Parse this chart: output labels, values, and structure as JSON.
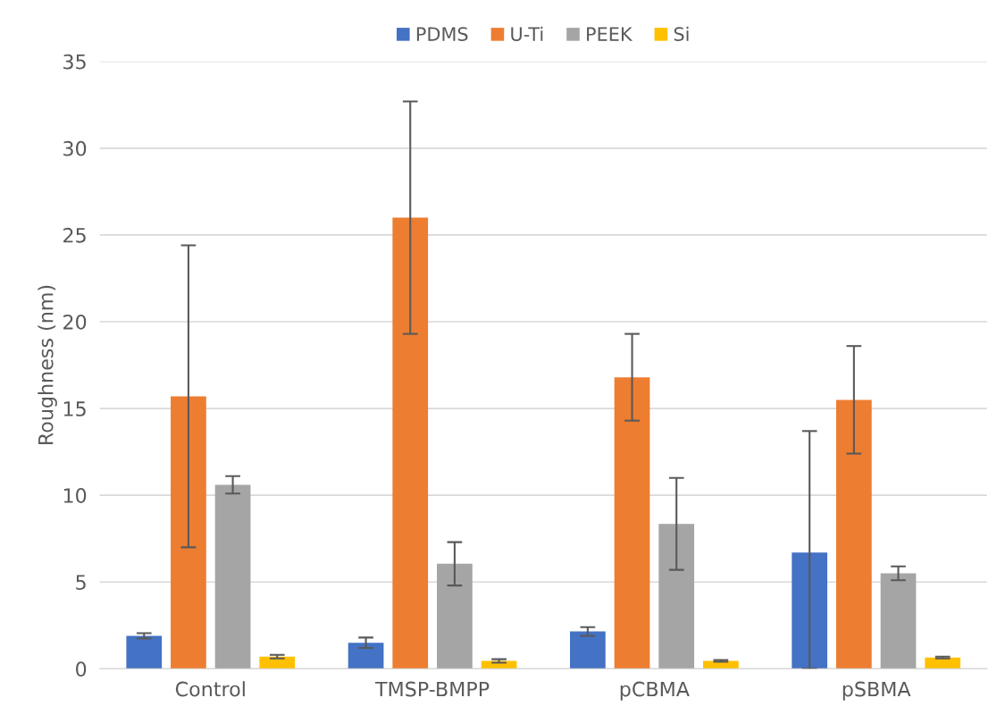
{
  "chart_data": {
    "type": "bar",
    "ylabel": "Roughness (nm)",
    "categories": [
      "Control",
      "TMSP-BMPP",
      "pCBMA",
      "pSBMA"
    ],
    "series": [
      {
        "name": "PDMS",
        "color": "#4472c4",
        "values": [
          1.9,
          1.5,
          2.15,
          6.7
        ],
        "errors": [
          [
            1.75,
            2.05
          ],
          [
            1.2,
            1.8
          ],
          [
            1.9,
            2.4
          ],
          [
            0,
            13.7
          ]
        ]
      },
      {
        "name": "U-Ti",
        "color": "#ed7d31",
        "values": [
          15.7,
          26.0,
          16.8,
          15.5
        ],
        "errors": [
          [
            7.0,
            24.4
          ],
          [
            19.3,
            32.7
          ],
          [
            14.3,
            19.3
          ],
          [
            12.4,
            18.6
          ]
        ]
      },
      {
        "name": "PEEK",
        "color": "#a5a5a5",
        "values": [
          10.6,
          6.05,
          8.35,
          5.5
        ],
        "errors": [
          [
            10.1,
            11.1
          ],
          [
            4.8,
            7.3
          ],
          [
            5.7,
            11.0
          ],
          [
            5.1,
            5.9
          ]
        ]
      },
      {
        "name": "Si",
        "color": "#ffc000",
        "values": [
          0.7,
          0.45,
          0.45,
          0.65
        ],
        "errors": [
          [
            0.6,
            0.8
          ],
          [
            0.35,
            0.55
          ],
          [
            0.4,
            0.5
          ],
          [
            0.6,
            0.7
          ]
        ]
      }
    ],
    "ylim": [
      0,
      35
    ],
    "yticks": [
      0,
      5,
      10,
      15,
      20,
      25,
      30,
      35
    ],
    "grid": "y",
    "legend": "top"
  }
}
